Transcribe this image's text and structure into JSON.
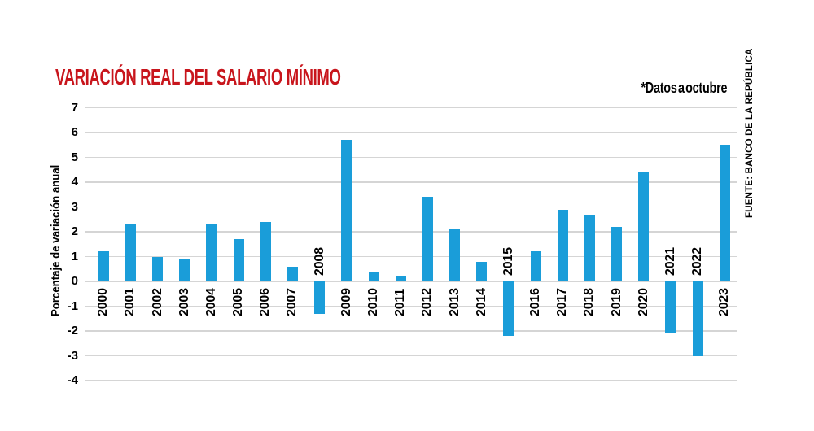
{
  "header": {
    "title": "VARIACIÓN REAL DEL SALARIO MÍNIMO",
    "footnote": "*Datos a octubre"
  },
  "source": {
    "label": "FUENTE: BANCO DE LA REPÚBLICA"
  },
  "chart_data": {
    "type": "bar",
    "title": "VARIACIÓN REAL DEL SALARIO MÍNIMO",
    "xlabel": "",
    "ylabel": "Porcentaje de variación anual",
    "categories": [
      "2000",
      "2001",
      "2002",
      "2003",
      "2004",
      "2005",
      "2006",
      "2007",
      "2008",
      "2009",
      "2010",
      "2011",
      "2012",
      "2013",
      "2014",
      "2015",
      "2016",
      "2017",
      "2018",
      "2019",
      "2020",
      "2021",
      "2022",
      "2023"
    ],
    "values": [
      1.2,
      2.3,
      1.0,
      0.9,
      2.3,
      1.7,
      2.4,
      0.6,
      -1.3,
      5.7,
      0.4,
      0.2,
      3.4,
      2.1,
      0.8,
      -2.2,
      1.2,
      2.9,
      2.7,
      2.2,
      4.4,
      -2.1,
      -3.0,
      5.5
    ],
    "ylim": [
      -4,
      7
    ],
    "yticks": [
      7,
      6,
      5,
      4,
      3,
      2,
      1,
      0,
      -1,
      -2,
      -3,
      -4
    ],
    "grid": true,
    "legend": "none",
    "annotation": "*Datos a octubre",
    "note_year_with_asterisk": "2023",
    "bar_color": "#1a9dd9",
    "title_color": "#c8151c",
    "gridline_color": "#d5d5d5",
    "text_color": "#000000"
  }
}
